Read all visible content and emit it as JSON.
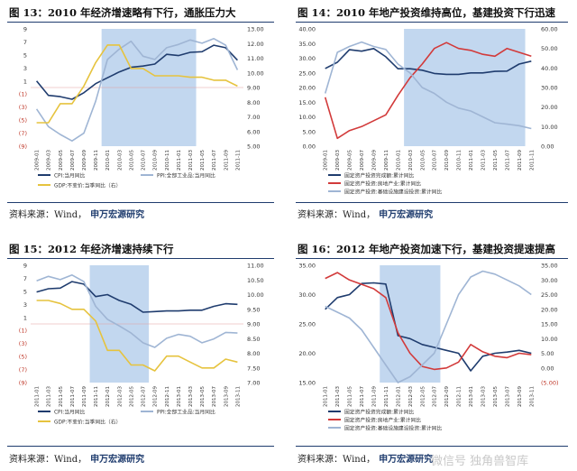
{
  "source_label": "资料来源：Wind，",
  "source_brand": "申万宏源研究",
  "watermark": "微信号 独角兽智库",
  "chart_data": [
    {
      "id": "fig13",
      "type": "line",
      "title": "图 13：2010 年经济增速略有下行，通胀压力大",
      "x": [
        "2009-01",
        "2009-03",
        "2009-05",
        "2009-07",
        "2009-09",
        "2009-11",
        "2010-01",
        "2010-03",
        "2010-05",
        "2010-07",
        "2010-09",
        "2010-11",
        "2011-01",
        "2011-03",
        "2011-05",
        "2011-07",
        "2011-09",
        "2011-11"
      ],
      "y_left_ticks": [
        "9",
        "7",
        "5",
        "3",
        "1",
        "(1)",
        "(3)",
        "(5)",
        "(7)",
        "(9)"
      ],
      "y_right_ticks": [
        "13.00",
        "12.00",
        "11.00",
        "10.00",
        "9.00",
        "8.00",
        "7.00",
        "6.00",
        "5.00"
      ],
      "ylim_left": [
        -9,
        9
      ],
      "ylim_right": [
        5,
        13
      ],
      "shade": [
        6,
        14
      ],
      "series": [
        {
          "name": "CPI:当月同比",
          "axis": "left",
          "color": "#1f3c6e",
          "values": [
            1.0,
            -1.2,
            -1.4,
            -1.8,
            -0.8,
            0.6,
            1.5,
            2.4,
            3.1,
            3.3,
            3.6,
            5.1,
            4.9,
            5.4,
            5.5,
            6.5,
            6.1,
            4.2
          ]
        },
        {
          "name": "PPI:全部工业品:当月同比",
          "axis": "left",
          "color": "#9fb5d4",
          "values": [
            -3.3,
            -6.0,
            -7.2,
            -8.2,
            -7.0,
            -2.1,
            4.3,
            5.9,
            7.1,
            4.8,
            4.3,
            6.1,
            6.6,
            7.3,
            6.8,
            7.5,
            6.5,
            2.7
          ]
        },
        {
          "name": "GDP:不变价:当季同比（右）",
          "axis": "right",
          "color": "#e6c33e",
          "values": [
            6.6,
            6.6,
            7.9,
            7.9,
            9.1,
            10.7,
            11.9,
            11.9,
            10.3,
            10.3,
            9.8,
            9.8,
            9.8,
            9.7,
            9.7,
            9.5,
            9.5,
            9.1
          ]
        }
      ],
      "legend": "bottom"
    },
    {
      "id": "fig14",
      "type": "line",
      "title": "图 14：2010 年地产投资维持高位，基建投资下行迅速",
      "x": [
        "2009-01",
        "2009-03",
        "2009-05",
        "2009-07",
        "2009-09",
        "2009-11",
        "2010-01",
        "2010-03",
        "2010-05",
        "2010-07",
        "2010-09",
        "2010-11",
        "2011-01",
        "2011-03",
        "2011-05",
        "2011-07",
        "2011-09",
        "2011-11"
      ],
      "y_left_ticks": [
        "40.00",
        "35.00",
        "30.00",
        "25.00",
        "20.00",
        "15.00",
        "10.00",
        "5.00",
        "0.00"
      ],
      "y_right_ticks": [
        "60.00",
        "50.00",
        "40.00",
        "30.00",
        "20.00",
        "10.00",
        "0.00"
      ],
      "ylim_left": [
        0,
        40
      ],
      "ylim_right": [
        0,
        60
      ],
      "shade": [
        7,
        17
      ],
      "series": [
        {
          "name": "固定资产投资完成额:累计同比",
          "axis": "left",
          "color": "#1f3c6e",
          "values": [
            26.5,
            28.6,
            32.9,
            32.4,
            33.3,
            30.5,
            26.4,
            26.4,
            25.9,
            24.8,
            24.5,
            24.5,
            25.0,
            25.0,
            25.5,
            25.6,
            28.0,
            29.0
          ]
        },
        {
          "name": "固定资产投资:房地产业:累计同比",
          "axis": "right",
          "color": "#d23a3a",
          "values": [
            25.0,
            4.0,
            8.0,
            10.0,
            13.0,
            16.0,
            26.0,
            35.0,
            42.0,
            50.0,
            53.0,
            50.0,
            49.0,
            47.0,
            46.0,
            50.0,
            48.0,
            46.0
          ]
        },
        {
          "name": "固定资产投资:基础设施建设投资:累计同比",
          "axis": "left",
          "color": "#9fb5d4",
          "values": [
            18.0,
            32.0,
            34.0,
            35.5,
            34.0,
            33.0,
            28.0,
            25.0,
            20.0,
            18.0,
            15.0,
            13.0,
            12.0,
            10.0,
            8.0,
            7.5,
            7.0,
            6.0
          ]
        }
      ],
      "legend": "bottom"
    },
    {
      "id": "fig15",
      "type": "line",
      "title": "图 15：2012 年经济增速持续下行",
      "x": [
        "2011-01",
        "2011-03",
        "2011-05",
        "2011-07",
        "2011-09",
        "2011-11",
        "2012-01",
        "2012-03",
        "2012-05",
        "2012-07",
        "2012-09",
        "2012-11",
        "2013-01",
        "2013-03",
        "2013-05",
        "2013-07",
        "2013-09",
        "2013-11"
      ],
      "y_left_ticks": [
        "9",
        "7",
        "5",
        "3",
        "1",
        "(1)",
        "(3)",
        "(5)",
        "(7)",
        "(9)"
      ],
      "y_right_ticks": [
        "11.00",
        "10.50",
        "10.00",
        "9.50",
        "9.00",
        "8.50",
        "8.00",
        "7.50",
        "7.00"
      ],
      "ylim_left": [
        -9,
        9
      ],
      "ylim_right": [
        7,
        11
      ],
      "shade": [
        5,
        10
      ],
      "series": [
        {
          "name": "CPI:当月同比",
          "axis": "left",
          "color": "#1f3c6e",
          "values": [
            4.9,
            5.4,
            5.5,
            6.5,
            6.1,
            4.2,
            4.5,
            3.6,
            3.0,
            1.8,
            1.9,
            2.0,
            2.0,
            2.1,
            2.1,
            2.7,
            3.1,
            3.0
          ]
        },
        {
          "name": "PPI:全部工业品:当月同比",
          "axis": "left",
          "color": "#9fb5d4",
          "values": [
            6.6,
            7.3,
            6.8,
            7.5,
            6.5,
            2.7,
            0.7,
            -0.3,
            -1.4,
            -2.9,
            -3.6,
            -2.2,
            -1.6,
            -1.9,
            -2.9,
            -2.3,
            -1.3,
            -1.4
          ]
        },
        {
          "name": "GDP:不变价:当季同比（右）",
          "axis": "right",
          "color": "#e6c33e",
          "values": [
            9.8,
            9.8,
            9.7,
            9.5,
            9.5,
            9.1,
            8.1,
            8.1,
            7.6,
            7.6,
            7.4,
            7.9,
            7.9,
            7.7,
            7.5,
            7.5,
            7.8,
            7.7
          ]
        }
      ],
      "legend": "bottom"
    },
    {
      "id": "fig16",
      "type": "line",
      "title": "图 16：2012 年地产投资加速下行，基建投资提速提高",
      "x": [
        "2011-01",
        "2011-03",
        "2011-05",
        "2011-07",
        "2011-09",
        "2011-11",
        "2012-01",
        "2012-03",
        "2012-05",
        "2012-07",
        "2012-09",
        "2012-11",
        "2013-01",
        "2013-03",
        "2013-05",
        "2013-07",
        "2013-09",
        "2013-11"
      ],
      "y_left_ticks": [
        "35.00",
        "30.00",
        "25.00",
        "20.00",
        "15.00"
      ],
      "y_right_ticks": [
        "35.00",
        "30.00",
        "25.00",
        "20.00",
        "15.00",
        "10.00",
        "5.00",
        "0.00",
        "(5.00)"
      ],
      "ylim_left": [
        15,
        35
      ],
      "ylim_right": [
        -5,
        35
      ],
      "shade": [
        5,
        10
      ],
      "series": [
        {
          "name": "固定资产投资完成额:累计同比",
          "axis": "left",
          "color": "#1f3c6e",
          "values": [
            27.5,
            29.5,
            30.0,
            31.9,
            32.0,
            31.8,
            23.0,
            22.5,
            21.5,
            21.0,
            20.5,
            20.0,
            17.0,
            19.5,
            20.0,
            20.2,
            20.5,
            20.0
          ]
        },
        {
          "name": "固定资产投资:房地产业:累计同比",
          "axis": "right",
          "color": "#d23a3a",
          "values": [
            30.5,
            32.5,
            30.0,
            28.5,
            27.0,
            24.0,
            12.0,
            5.0,
            0.5,
            -0.5,
            0.0,
            2.0,
            8.0,
            5.5,
            4.0,
            3.5,
            5.0,
            4.5
          ]
        },
        {
          "name": "固定资产投资:基础设施建设投资:累计同比",
          "axis": "left",
          "color": "#9fb5d4",
          "values": [
            28.0,
            27.0,
            26.0,
            24.0,
            21.0,
            18.0,
            15.0,
            16.0,
            18.0,
            20.0,
            25.0,
            30.0,
            33.0,
            34.0,
            33.5,
            32.5,
            31.5,
            30.0
          ]
        }
      ],
      "legend": "bottom"
    }
  ]
}
